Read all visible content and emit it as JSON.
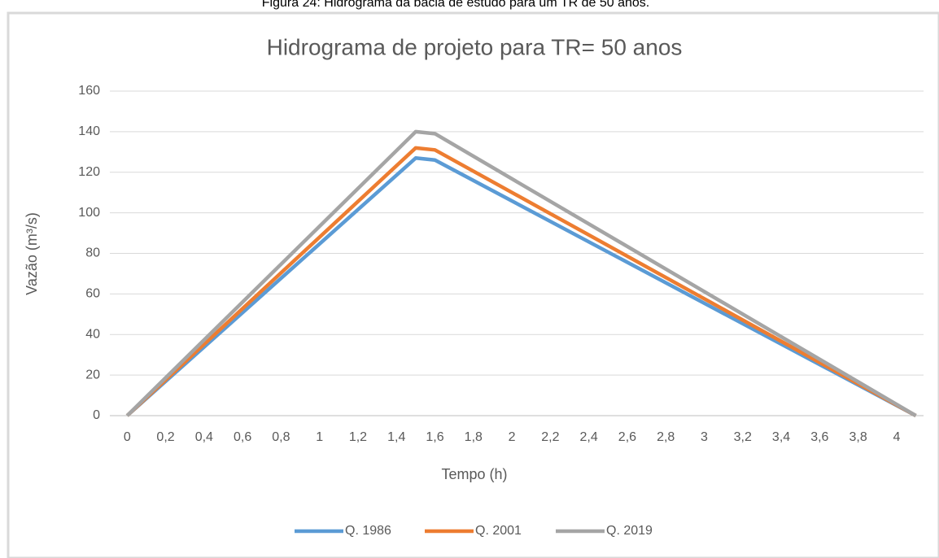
{
  "caption": "Figura 24: Hidrograma da bacia de estudo para um TR de 50 anos.",
  "chart_data": {
    "type": "line",
    "title": "Hidrograma de projeto para TR= 50 anos",
    "x_label": "Tempo (h)",
    "y_label": "Vazão (m³/s)",
    "x": [
      0,
      1.5,
      1.6,
      4.1
    ],
    "series": [
      {
        "name": "Q. 1986",
        "color": "#5b9bd5",
        "values": [
          0,
          127,
          126,
          0
        ]
      },
      {
        "name": "Q. 2001",
        "color": "#ed7d31",
        "values": [
          0,
          132,
          131,
          0
        ]
      },
      {
        "name": "Q. 2019",
        "color": "#a5a5a5",
        "values": [
          0,
          140,
          139,
          0
        ]
      }
    ],
    "xlim": [
      -0.09,
      4.14
    ],
    "xticks": [
      0,
      {
        "value": 0.2,
        "label": "0,2"
      },
      {
        "value": 0.4,
        "label": "0,4"
      },
      {
        "value": 0.6,
        "label": "0,6"
      },
      {
        "value": 0.8,
        "label": "0,8"
      },
      1,
      {
        "value": 1.2,
        "label": "1,2"
      },
      {
        "value": 1.4,
        "label": "1,4"
      },
      {
        "value": 1.6,
        "label": "1,6"
      },
      {
        "value": 1.8,
        "label": "1,8"
      },
      2,
      {
        "value": 2.2,
        "label": "2,2"
      },
      {
        "value": 2.4,
        "label": "2,4"
      },
      {
        "value": 2.6,
        "label": "2,6"
      },
      {
        "value": 2.8,
        "label": "2,8"
      },
      3,
      {
        "value": 3.2,
        "label": "3,2"
      },
      {
        "value": 3.4,
        "label": "3,4"
      },
      {
        "value": 3.6,
        "label": "3,6"
      },
      {
        "value": 3.8,
        "label": "3,8"
      },
      4
    ],
    "ylim": [
      0,
      160
    ],
    "yticks": [
      0,
      20,
      40,
      60,
      80,
      100,
      120,
      140,
      160
    ],
    "grid": true,
    "legend": "bottom"
  }
}
